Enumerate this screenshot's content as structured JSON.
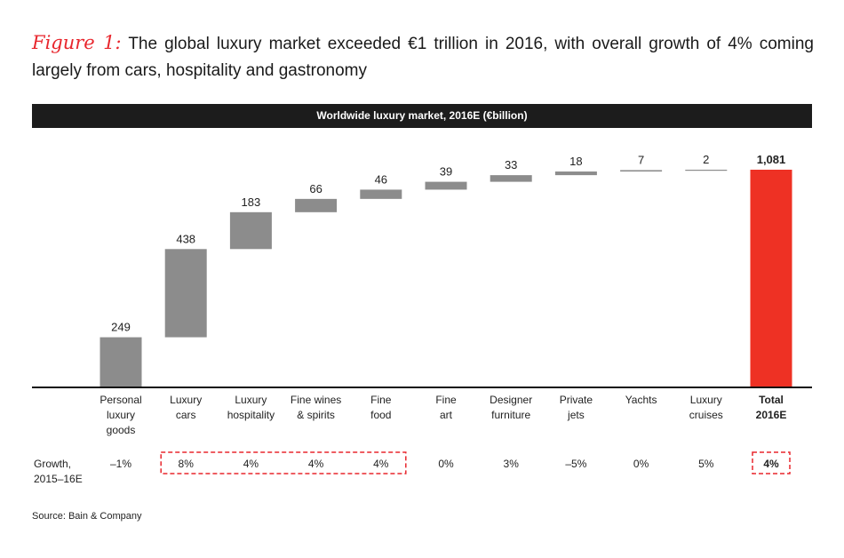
{
  "title": {
    "figure_label": "Figure 1:",
    "text": "The global luxury market exceeded €1 trillion in 2016, with overall growth of 4% coming largely from cars, hospitality and gastronomy"
  },
  "chart_data": {
    "type": "bar",
    "subtype": "waterfall",
    "title": "Worldwide luxury market, 2016E (€billion)",
    "categories": [
      [
        "Personal",
        "luxury",
        "goods"
      ],
      [
        "Luxury",
        "cars"
      ],
      [
        "Luxury",
        "hospitality"
      ],
      [
        "Fine wines",
        "& spirits"
      ],
      [
        "Fine",
        "food"
      ],
      [
        "Fine",
        "art"
      ],
      [
        "Designer",
        "furniture"
      ],
      [
        "Private",
        "jets"
      ],
      [
        "Yachts"
      ],
      [
        "Luxury",
        "cruises"
      ],
      [
        "Total",
        "2016E"
      ]
    ],
    "values": [
      249,
      438,
      183,
      66,
      46,
      39,
      33,
      18,
      7,
      2,
      1081
    ],
    "value_labels": [
      "249",
      "438",
      "183",
      "66",
      "46",
      "39",
      "33",
      "18",
      "7",
      "2",
      "1,081"
    ],
    "total_index": 10,
    "growth": {
      "label": [
        "Growth,",
        "2015–16E"
      ],
      "values": [
        "–1%",
        "8%",
        "4%",
        "4%",
        "4%",
        "0%",
        "3%",
        "–5%",
        "0%",
        "5%",
        "4%"
      ],
      "highlighted_range": [
        1,
        4
      ],
      "highlighted_total": 10
    },
    "ylim": [
      0,
      1081
    ],
    "grid": false,
    "colors": {
      "bars": "#8c8c8c",
      "total": "#ee3124",
      "highlight": "#e8262d",
      "banner": "#1c1c1c"
    }
  },
  "source": "Source: Bain & Company"
}
